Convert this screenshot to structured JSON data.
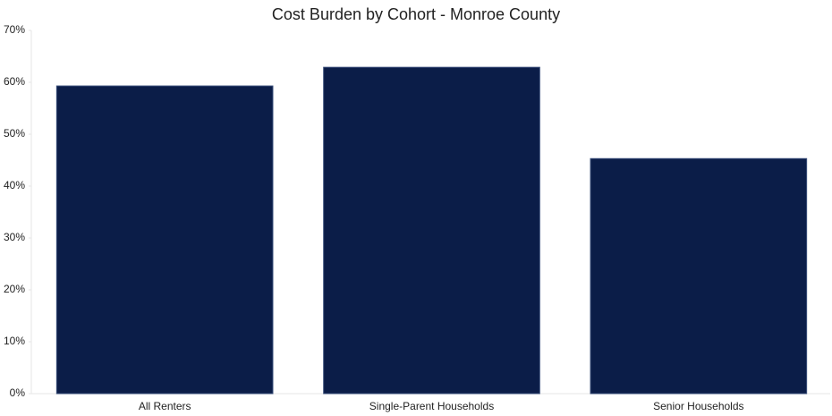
{
  "chart_data": {
    "type": "bar",
    "title": "Cost Burden by Cohort - Monroe County",
    "categories": [
      "All Renters",
      "Single-Parent Households",
      "Senior Households"
    ],
    "values": [
      59.3,
      62.9,
      45.3
    ],
    "color": "#0b1d48",
    "ylim": [
      0,
      70
    ],
    "yticks": [
      {
        "value": 0,
        "label": "0%"
      },
      {
        "value": 10,
        "label": "10%"
      },
      {
        "value": 20,
        "label": "20%"
      },
      {
        "value": 30,
        "label": "30%"
      },
      {
        "value": 40,
        "label": "40%"
      },
      {
        "value": 50,
        "label": "50%"
      },
      {
        "value": 60,
        "label": "60%"
      },
      {
        "value": 70,
        "label": "70%"
      }
    ],
    "grid": false
  }
}
